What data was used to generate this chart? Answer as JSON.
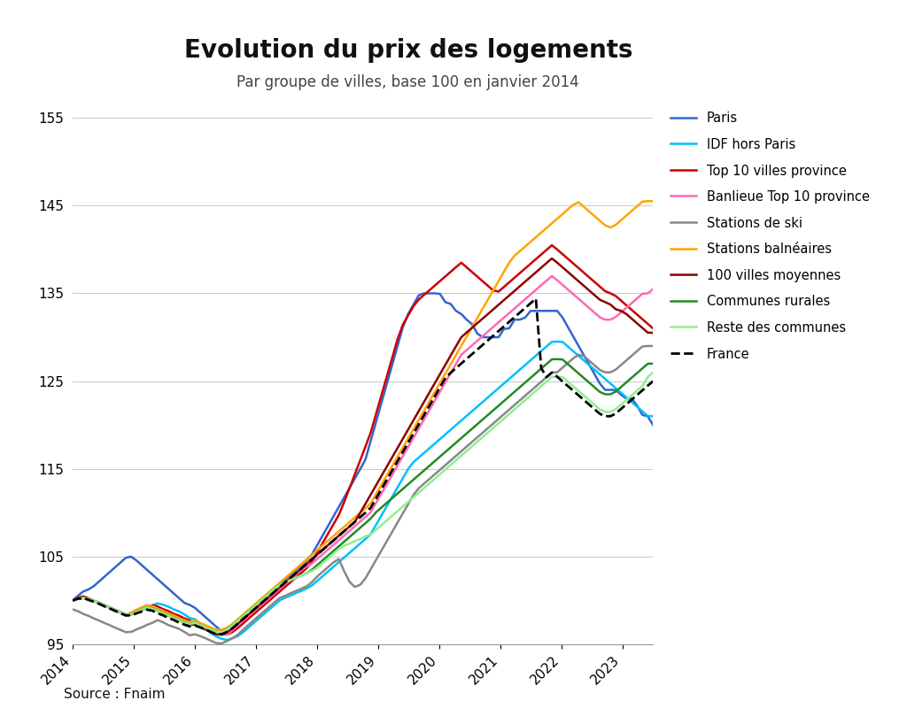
{
  "title": "Evolution du prix des logements",
  "subtitle": "Par groupe de villes, base 100 en janvier 2014",
  "source": "Source : Fnaim",
  "ylim": [
    95,
    157
  ],
  "yticks": [
    95,
    105,
    115,
    125,
    135,
    145,
    155
  ],
  "background_color": "#ffffff",
  "series": {
    "Paris": {
      "color": "#3366cc",
      "linestyle": "-",
      "linewidth": 1.8,
      "values": [
        100,
        100.5,
        101,
        101.2,
        101.5,
        102,
        102.5,
        103,
        103.5,
        104,
        104.5,
        105,
        105,
        104.5,
        104,
        103.5,
        103,
        102.5,
        102,
        101.5,
        101,
        100.5,
        100,
        99.5,
        99.5,
        99,
        98.5,
        98,
        97.5,
        97,
        96.5,
        96.5,
        97,
        97.5,
        98,
        98.5,
        99,
        99.5,
        100,
        100.5,
        101,
        101.5,
        102,
        102.5,
        103,
        103.5,
        104,
        104.5,
        105,
        106,
        107,
        108,
        109,
        110,
        111,
        112,
        113,
        114,
        115,
        116,
        118,
        120,
        122,
        124,
        126,
        128,
        130,
        132,
        133,
        134,
        135,
        135,
        135,
        135,
        135,
        134,
        134,
        133,
        133,
        132,
        132,
        131,
        130,
        130,
        130,
        130,
        130,
        131,
        131,
        132,
        132,
        132,
        133,
        133,
        133,
        133,
        133,
        133,
        133,
        132,
        131,
        130,
        129,
        128,
        127,
        126,
        125,
        124,
        124,
        124,
        124,
        123,
        123,
        123,
        122,
        121,
        121,
        120
      ]
    },
    "IDF hors Paris": {
      "color": "#00bfff",
      "linestyle": "-",
      "linewidth": 1.8,
      "values": [
        100,
        100.2,
        100.3,
        100.2,
        100,
        99.8,
        99.5,
        99.3,
        99,
        98.8,
        98.5,
        98.3,
        98.5,
        98.7,
        99,
        99.2,
        99.5,
        99.7,
        99.5,
        99.3,
        99,
        98.8,
        98.5,
        98,
        98,
        97.5,
        97,
        96.5,
        96,
        95.8,
        95.5,
        95.5,
        95.8,
        96,
        96.5,
        97,
        97.5,
        98,
        98.5,
        99,
        99.5,
        100,
        100.3,
        100.5,
        100.8,
        101,
        101.3,
        101.5,
        102,
        102.5,
        103,
        103.5,
        104,
        104.5,
        105,
        105.5,
        106,
        106.5,
        107,
        107.5,
        108.5,
        109.5,
        110.5,
        111.5,
        112.5,
        113.5,
        114.5,
        115.5,
        116,
        116.5,
        117,
        117.5,
        118,
        118.5,
        119,
        119.5,
        120,
        120.5,
        121,
        121.5,
        122,
        122.5,
        123,
        123.5,
        124,
        124.5,
        125,
        125.5,
        126,
        126.5,
        127,
        127.5,
        128,
        128.5,
        129,
        129.5,
        129.5,
        129.5,
        129,
        128.5,
        128,
        127.5,
        127,
        126.5,
        126,
        125.5,
        125,
        124.5,
        124,
        123.5,
        123,
        122.5,
        122,
        121.5,
        121,
        121
      ]
    },
    "Top 10 villes province": {
      "color": "#cc0000",
      "linestyle": "-",
      "linewidth": 1.8,
      "values": [
        100,
        100.3,
        100.5,
        100.3,
        100,
        99.8,
        99.5,
        99.3,
        99,
        98.8,
        98.5,
        98.3,
        98.5,
        98.8,
        99,
        99.3,
        99.5,
        99.3,
        99,
        98.8,
        98.5,
        98.3,
        98,
        97.8,
        97.5,
        97.2,
        97,
        96.8,
        96.5,
        96.3,
        96,
        96.2,
        96.5,
        97,
        97.5,
        98,
        98.5,
        99,
        99.5,
        100,
        100.5,
        101,
        101.5,
        102,
        102.5,
        103,
        103.5,
        104,
        105,
        106,
        107,
        108,
        109,
        110,
        111.5,
        113,
        114.5,
        116,
        117.5,
        119,
        121,
        123,
        125,
        127,
        129,
        131,
        132,
        133,
        134,
        134.5,
        135,
        135.5,
        136,
        136.5,
        137,
        137.5,
        138,
        138.5,
        138,
        137.5,
        137,
        136.5,
        136,
        135.5,
        135,
        135.5,
        136,
        136.5,
        137,
        137.5,
        138,
        138.5,
        139,
        139.5,
        140,
        140.5,
        140,
        139.5,
        139,
        138.5,
        138,
        137.5,
        137,
        136.5,
        136,
        135.5,
        135,
        135,
        134.5,
        134,
        133.5,
        133,
        132.5,
        132,
        131.5,
        131
      ]
    },
    "Banlieue Top 10 province": {
      "color": "#ff69b4",
      "linestyle": "-",
      "linewidth": 1.8,
      "values": [
        100,
        100.2,
        100.3,
        100.2,
        100,
        99.8,
        99.5,
        99.3,
        99,
        98.8,
        98.5,
        98.3,
        98.8,
        99,
        99.3,
        99.5,
        99.3,
        99,
        98.8,
        98.5,
        98.3,
        98,
        97.8,
        97.5,
        97.5,
        97.2,
        97,
        96.8,
        96.5,
        96.3,
        96,
        96.2,
        96.8,
        97.3,
        97.8,
        98.3,
        98.8,
        99.3,
        99.8,
        100.3,
        100.8,
        101.3,
        101.8,
        102.3,
        102.8,
        103.3,
        103.8,
        104,
        104.5,
        105,
        105.5,
        106,
        106.5,
        107,
        107.5,
        108,
        108.5,
        109,
        109.5,
        110,
        111,
        112,
        113,
        114,
        115,
        116,
        117,
        118,
        119,
        120,
        121,
        122,
        123,
        124,
        125,
        126,
        127,
        128,
        128.5,
        129,
        129.5,
        130,
        130.5,
        131,
        131.5,
        132,
        132.5,
        133,
        133.5,
        134,
        134.5,
        135,
        135.5,
        136,
        136.5,
        137,
        136.5,
        136,
        135.5,
        135,
        134.5,
        134,
        133.5,
        133,
        132.5,
        132,
        132,
        132,
        132.5,
        133,
        133.5,
        134,
        134.5,
        135,
        135,
        135.5
      ]
    },
    "Stations de ski": {
      "color": "#888888",
      "linestyle": "-",
      "linewidth": 1.8,
      "values": [
        99,
        98.8,
        98.5,
        98.3,
        98,
        97.8,
        97.5,
        97.3,
        97,
        96.8,
        96.5,
        96.3,
        96.5,
        96.8,
        97,
        97.3,
        97.5,
        97.8,
        97.5,
        97.2,
        97,
        96.8,
        96.5,
        96,
        96.2,
        96,
        95.8,
        95.5,
        95.3,
        95,
        95.2,
        95.5,
        95.8,
        96.2,
        96.8,
        97.3,
        97.8,
        98.3,
        98.8,
        99.3,
        99.8,
        100.3,
        100.5,
        100.8,
        101,
        101.3,
        101.5,
        101.8,
        102.5,
        103,
        103.5,
        104,
        104.5,
        104.8,
        103,
        102,
        101.5,
        101.8,
        102.5,
        103.5,
        104.5,
        105.5,
        106.5,
        107.5,
        108.5,
        109.5,
        110.5,
        111.5,
        112.5,
        113,
        113.5,
        114,
        114.5,
        115,
        115.5,
        116,
        116.5,
        117,
        117.5,
        118,
        118.5,
        119,
        119.5,
        120,
        120.5,
        121,
        121.5,
        122,
        122.5,
        123,
        123.5,
        124,
        124.5,
        125,
        125.5,
        126,
        126,
        126.5,
        127,
        127.5,
        128,
        128,
        127.5,
        127,
        126.5,
        126,
        126,
        126,
        126.5,
        127,
        127.5,
        128,
        128.5,
        129,
        129,
        129
      ]
    },
    "Stations balnéaires": {
      "color": "#ffa500",
      "linestyle": "-",
      "linewidth": 1.8,
      "values": [
        100,
        100.2,
        100.3,
        100.2,
        100,
        99.8,
        99.5,
        99.3,
        99,
        98.8,
        98.5,
        98.3,
        98.8,
        99,
        99.3,
        99.5,
        99.3,
        99,
        98.8,
        98.5,
        98.3,
        98,
        97.8,
        97.5,
        97.8,
        97.5,
        97.3,
        97,
        96.8,
        96.5,
        96.8,
        97,
        97.5,
        98,
        98.5,
        99,
        99.5,
        100,
        100.5,
        101,
        101.5,
        102,
        102.5,
        103,
        103.5,
        104,
        104.5,
        105,
        105.5,
        106,
        106.5,
        107,
        107.5,
        108,
        108.5,
        109,
        109.5,
        110,
        110.5,
        111,
        112,
        113,
        114,
        115,
        116,
        117,
        118,
        119,
        120,
        121,
        122,
        123,
        124,
        125,
        126,
        127,
        128,
        129,
        130,
        131,
        132,
        133,
        134,
        135,
        136,
        137,
        138,
        139,
        139.5,
        140,
        140.5,
        141,
        141.5,
        142,
        142.5,
        143,
        143.5,
        144,
        144.5,
        145,
        145.5,
        145,
        144.5,
        144,
        143.5,
        143,
        142.5,
        142.5,
        143,
        143.5,
        144,
        144.5,
        145,
        145.5,
        145.5,
        145.5
      ]
    },
    "100 villes moyennes": {
      "color": "#8b0000",
      "linestyle": "-",
      "linewidth": 1.8,
      "values": [
        100,
        100.2,
        100.3,
        100.2,
        100,
        99.8,
        99.5,
        99.3,
        99,
        98.8,
        98.5,
        98.3,
        98.5,
        98.8,
        99,
        99.3,
        99,
        98.8,
        98.5,
        98.3,
        98,
        97.8,
        97.5,
        97.3,
        97.3,
        97,
        96.8,
        96.5,
        96.3,
        96,
        96.2,
        96.5,
        97,
        97.5,
        98,
        98.5,
        99,
        99.5,
        100,
        100.5,
        101,
        101.5,
        102,
        102.5,
        103,
        103.5,
        104,
        104.5,
        105,
        105.5,
        106,
        106.5,
        107,
        107.5,
        108,
        108.5,
        109,
        110,
        111,
        112,
        113,
        114,
        115,
        116,
        117,
        118,
        119,
        120,
        121,
        122,
        123,
        124,
        125,
        126,
        127,
        128,
        129,
        130,
        130.5,
        131,
        131.5,
        132,
        132.5,
        133,
        133.5,
        134,
        134.5,
        135,
        135.5,
        136,
        136.5,
        137,
        137.5,
        138,
        138.5,
        139,
        138.5,
        138,
        137.5,
        137,
        136.5,
        136,
        135.5,
        135,
        134.5,
        134,
        134,
        133.5,
        133,
        133,
        132.5,
        132,
        131.5,
        131,
        130.5,
        130.5
      ]
    },
    "Communes rurales": {
      "color": "#228B22",
      "linestyle": "-",
      "linewidth": 1.8,
      "values": [
        100,
        100.2,
        100.3,
        100.2,
        100,
        99.8,
        99.5,
        99.3,
        99,
        98.8,
        98.5,
        98.3,
        98.5,
        98.8,
        99,
        99.3,
        99,
        98.8,
        98.5,
        98.3,
        98,
        97.8,
        97.5,
        97.3,
        97.5,
        97.3,
        97,
        96.8,
        96.5,
        96.3,
        96.5,
        96.8,
        97.3,
        97.8,
        98.3,
        98.8,
        99.3,
        99.8,
        100.3,
        100.8,
        101.3,
        101.8,
        102,
        102.3,
        102.5,
        102.8,
        103,
        103.3,
        103.8,
        104.3,
        104.8,
        105.3,
        105.8,
        106.3,
        106.8,
        107.3,
        107.8,
        108.3,
        108.8,
        109.3,
        110,
        110.5,
        111,
        111.5,
        112,
        112.5,
        113,
        113.5,
        114,
        114.5,
        115,
        115.5,
        116,
        116.5,
        117,
        117.5,
        118,
        118.5,
        119,
        119.5,
        120,
        120.5,
        121,
        121.5,
        122,
        122.5,
        123,
        123.5,
        124,
        124.5,
        125,
        125.5,
        126,
        126.5,
        127,
        127.5,
        127.5,
        127.5,
        127,
        126.5,
        126,
        125.5,
        125,
        124.5,
        124,
        123.5,
        123.5,
        123.5,
        124,
        124.5,
        125,
        125.5,
        126,
        126.5,
        127,
        127
      ]
    },
    "Reste des communes": {
      "color": "#90EE90",
      "linestyle": "-",
      "linewidth": 1.8,
      "values": [
        100,
        100.2,
        100.3,
        100.2,
        100,
        99.8,
        99.5,
        99.3,
        99,
        98.8,
        98.5,
        98.3,
        98.5,
        98.8,
        99,
        99.3,
        99,
        98.8,
        98.5,
        98.3,
        98,
        97.8,
        97.5,
        97.3,
        97.5,
        97.3,
        97,
        96.8,
        96.5,
        96.3,
        96.5,
        96.8,
        97.3,
        97.8,
        98.3,
        98.8,
        99.3,
        99.8,
        100.3,
        100.8,
        101.3,
        101.8,
        102,
        102.3,
        102.5,
        102.8,
        103,
        103.3,
        103.5,
        104,
        104.5,
        105,
        105.5,
        106,
        106.3,
        106.5,
        106.8,
        107,
        107.3,
        107.5,
        108,
        108.5,
        109,
        109.5,
        110,
        110.5,
        111,
        111.5,
        112,
        112.5,
        113,
        113.5,
        114,
        114.5,
        115,
        115.5,
        116,
        116.5,
        117,
        117.5,
        118,
        118.5,
        119,
        119.5,
        120,
        120.5,
        121,
        121.5,
        122,
        122.5,
        123,
        123.5,
        124,
        124.5,
        125,
        125.5,
        125.5,
        125.5,
        125,
        124.5,
        124,
        123.5,
        123,
        122.5,
        122,
        121.5,
        121.5,
        121.5,
        122,
        122.5,
        123,
        123.5,
        124,
        124.5,
        125.5,
        126
      ]
    },
    "France": {
      "color": "#000000",
      "linestyle": "--",
      "linewidth": 2.0,
      "values": [
        100,
        100.2,
        100.3,
        100.1,
        99.9,
        99.7,
        99.4,
        99.2,
        98.9,
        98.7,
        98.4,
        98.2,
        98.4,
        98.6,
        98.8,
        99,
        98.8,
        98.5,
        98.3,
        98,
        97.8,
        97.5,
        97.3,
        97,
        97.2,
        97,
        96.8,
        96.5,
        96.3,
        96,
        96.3,
        96.5,
        97,
        97.5,
        98,
        98.5,
        99,
        99.5,
        100,
        100.5,
        101,
        101.5,
        102,
        102.5,
        103,
        103.5,
        104,
        104.5,
        105,
        105.5,
        106,
        106.5,
        107,
        107.5,
        108,
        108.5,
        109,
        109.5,
        110,
        110.5,
        111.5,
        112.5,
        113.5,
        114.5,
        115.5,
        116.5,
        117.5,
        118.5,
        119.5,
        120.5,
        121.5,
        122.5,
        123.5,
        124.5,
        125.5,
        126,
        126.5,
        127,
        127.5,
        128,
        128.5,
        129,
        129.5,
        130,
        130.5,
        131,
        131.5,
        132,
        132.5,
        133,
        133.5,
        134,
        134.5,
        125,
        125.5,
        126,
        125.5,
        125,
        124.5,
        124,
        123.5,
        123,
        122.5,
        122,
        121.5,
        121,
        121,
        121,
        121.5,
        122,
        122.5,
        123,
        123.5,
        124,
        124.5,
        125
      ]
    }
  }
}
